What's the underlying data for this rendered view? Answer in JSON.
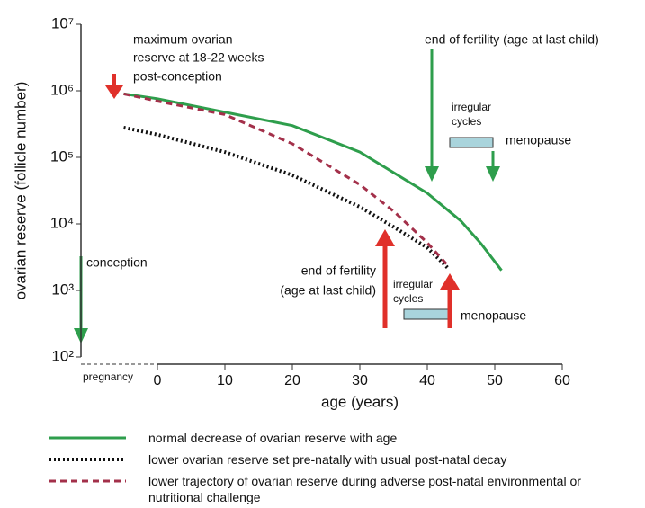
{
  "chart_data": {
    "type": "line",
    "xlabel": "age (years)",
    "ylabel": "ovarian reserve (follicle number)",
    "log_y": true,
    "xlim": [
      -12,
      60
    ],
    "xticks": [
      0,
      10,
      20,
      30,
      40,
      50,
      60
    ],
    "ylim": [
      100,
      10000000
    ],
    "yticks": [
      {
        "value": 100,
        "label": "10²"
      },
      {
        "value": 1000,
        "label": "10³"
      },
      {
        "value": 10000,
        "label": "10⁴"
      },
      {
        "value": 100000,
        "label": "10⁵"
      },
      {
        "value": 1000000,
        "label": "10⁶"
      },
      {
        "value": 10000000,
        "label": "10⁷"
      }
    ],
    "series": [
      {
        "name": "normal decrease of ovarian reserve with age",
        "color": "#2e9e4c",
        "style": "solid",
        "x": [
          -5,
          0,
          20,
          30,
          40,
          45,
          48,
          51
        ],
        "values": [
          900000,
          760000,
          300000,
          120000,
          29000,
          11000,
          5000,
          2000
        ]
      },
      {
        "name": "lower ovarian reserve set pre-natally with usual post-natal decay",
        "color": "#111111",
        "style": "dotted",
        "x": [
          -5,
          0,
          10,
          20,
          30,
          35,
          40,
          43
        ],
        "values": [
          280000,
          220000,
          120000,
          54000,
          18000,
          9000,
          4400,
          2200
        ]
      },
      {
        "name": "lower trajectory of ovarian reserve during adverse post-natal environmental or nutritional challenge",
        "color": "#a3304a",
        "style": "dashed",
        "x": [
          -5,
          0,
          10,
          20,
          30,
          35,
          40,
          43
        ],
        "values": [
          900000,
          700000,
          440000,
          160000,
          39000,
          15500,
          5200,
          2400
        ]
      }
    ],
    "annotations": {
      "max_reserve": [
        "maximum ovarian",
        "reserve at 18-22 weeks",
        "post-conception"
      ],
      "end_fertility_top": "end of fertility (age at last child)",
      "irregular_top": [
        "irregular",
        "cycles"
      ],
      "menopause_top": "menopause",
      "conception": "conception",
      "end_fertility_bottom": [
        "end of fertility",
        "(age at last child)"
      ],
      "irregular_bottom": [
        "irregular",
        "cycles"
      ],
      "menopause_bottom": "menopause",
      "pregnancy": "pregnancy"
    }
  }
}
